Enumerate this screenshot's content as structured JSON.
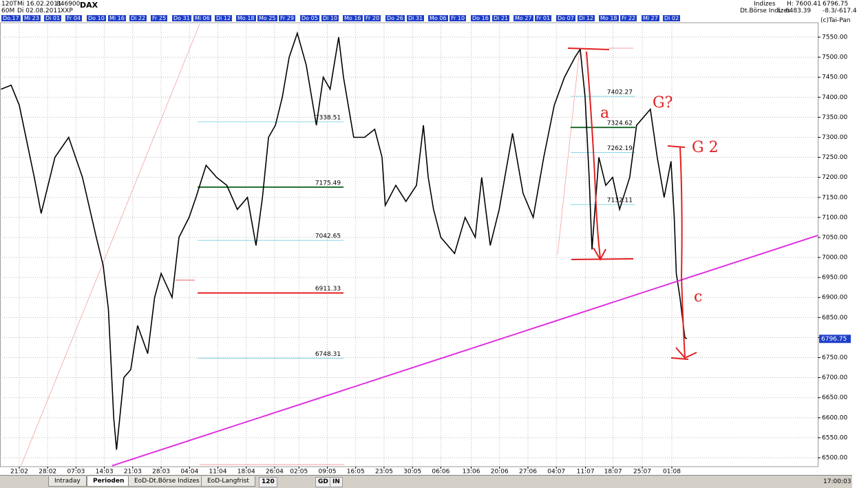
{
  "header": {
    "period": "120T",
    "date1": "Mi 16.02.2011",
    "code": "846900",
    "name": "DAX",
    "interval": "60M",
    "date2": "Di 02.08.2011",
    "exchange": "XXP",
    "group": "Indizes",
    "high": "H: 7600.41",
    "last": "6796.75",
    "market": "Dt.Börse Indizes",
    "low": "L: 6483.39",
    "change": "-8.3/-617.4",
    "copyright": "(c)Tai-Pan"
  },
  "date_strip": [
    "Do.17",
    "Mi 23",
    "Di 01",
    "Fr 04",
    "Do 10",
    "Mi 16",
    "Di 22",
    "Fr 25",
    "Do 31",
    "Mi 06",
    "Di 12",
    "Mo 18",
    "Mo 25",
    "Fr 29",
    "Do 05",
    "Di 10",
    "Mo 16",
    "Fr 20",
    "Do 26",
    "Di 31",
    "Mo 06",
    "Fr 10",
    "Do 16",
    "Di 21",
    "Mo 27",
    "Fr 01",
    "Do 07",
    "Di 12",
    "Mo 18",
    "Fr 22",
    "Mi 27",
    "Di 02"
  ],
  "toolbar": {
    "tabs": [
      "Intraday",
      "Perioden",
      "EoD-Dt.Börse Indizes",
      "EoD-Langfrist"
    ],
    "period": "120",
    "buttons": [
      "GD",
      "IN"
    ],
    "clock": "17:00:03"
  },
  "chart_data": {
    "type": "line",
    "x": [
      -4.5,
      -2,
      0,
      3.7,
      5.4,
      8.8,
      12.2,
      15.6,
      19,
      20.7,
      22,
      23.3,
      24,
      25.8,
      27.5,
      29.2,
      31.7,
      33.4,
      35,
      37.7,
      39.4,
      41.9,
      43.6,
      46.1,
      48.7,
      51.2,
      53.8,
      56.3,
      58.4,
      60,
      61.5,
      63.2,
      64.9,
      66.6,
      68.6,
      70.8,
      73.3,
      75,
      76.7,
      78.8,
      80,
      82.5,
      85.2,
      87.7,
      89.5,
      90.3,
      92.9,
      95.4,
      98,
      99.7,
      100.9,
      102.2,
      104,
      107.4,
      110,
      112.5,
      114.1,
      116.2,
      118.4,
      121.7,
      124.3,
      126.8,
      129.4,
      132,
      134.5,
      137.1,
      138.4,
      139.6,
      140.6,
      141.3,
      143,
      144.7,
      146.4,
      148.1,
      150.6,
      152.3,
      154,
      155.7,
      157.4,
      159.1,
      160.8,
      161.6,
      162.1,
      163,
      164.2,
      164.7
    ],
    "series": [
      {
        "name": "DAX",
        "color": "#000000",
        "values": [
          7420,
          7430,
          7380,
          7200,
          7110,
          7250,
          7300,
          7200,
          7050,
          6980,
          6870,
          6600,
          6520,
          6700,
          6720,
          6830,
          6760,
          6900,
          6960,
          6900,
          7050,
          7100,
          7150,
          7230,
          7200,
          7180,
          7120,
          7150,
          7030,
          7150,
          7300,
          7330,
          7400,
          7500,
          7560,
          7480,
          7330,
          7450,
          7420,
          7550,
          7450,
          7300,
          7300,
          7320,
          7250,
          7130,
          7180,
          7140,
          7180,
          7330,
          7200,
          7120,
          7050,
          7010,
          7100,
          7050,
          7200,
          7030,
          7120,
          7310,
          7160,
          7100,
          7250,
          7380,
          7450,
          7500,
          7520,
          7400,
          7200,
          7020,
          7250,
          7180,
          7200,
          7120,
          7200,
          7330,
          7350,
          7370,
          7250,
          7150,
          7240,
          7100,
          6960,
          6900,
          6800,
          6797
        ]
      }
    ],
    "xlim": [
      -4.75,
      197
    ],
    "ylim": [
      6477.7,
      7582.6
    ],
    "xticks": [
      {
        "value": 0,
        "label": "21:02"
      },
      {
        "value": 7,
        "label": "28:02"
      },
      {
        "value": 14,
        "label": "07:03"
      },
      {
        "value": 21,
        "label": "14:03"
      },
      {
        "value": 28,
        "label": "21:03"
      },
      {
        "value": 35,
        "label": "28:03"
      },
      {
        "value": 42,
        "label": "04:04"
      },
      {
        "value": 49,
        "label": "11:04"
      },
      {
        "value": 56,
        "label": "18:04"
      },
      {
        "value": 63,
        "label": "26:04"
      },
      {
        "value": 69,
        "label": "02:05"
      },
      {
        "value": 76,
        "label": "09:05"
      },
      {
        "value": 83,
        "label": "16:05"
      },
      {
        "value": 90,
        "label": "23:05"
      },
      {
        "value": 97,
        "label": "30:05"
      },
      {
        "value": 104,
        "label": "06:06"
      },
      {
        "value": 111.5,
        "label": "13:06"
      },
      {
        "value": 118.5,
        "label": "20:06"
      },
      {
        "value": 125.5,
        "label": "27:06"
      },
      {
        "value": 132.5,
        "label": "04:07"
      },
      {
        "value": 139.7,
        "label": "11:07"
      },
      {
        "value": 146.5,
        "label": "18:07"
      },
      {
        "value": 153.7,
        "label": "25:07"
      },
      {
        "value": 161,
        "label": "01:08"
      }
    ],
    "yticks": [
      {
        "value": 6500,
        "label": "6500.00"
      },
      {
        "value": 6550,
        "label": "6550.00"
      },
      {
        "value": 6600,
        "label": "6600.00"
      },
      {
        "value": 6650,
        "label": "6650.00"
      },
      {
        "value": 6700,
        "label": "6700.00"
      },
      {
        "value": 6750,
        "label": "6750.00"
      },
      {
        "value": 6800,
        "label": "6800.00"
      },
      {
        "value": 6850,
        "label": "6850.00"
      },
      {
        "value": 6900,
        "label": "6900.00"
      },
      {
        "value": 6950,
        "label": "6950.00"
      },
      {
        "value": 7000,
        "label": "7000.00"
      },
      {
        "value": 7050,
        "label": "7050.00"
      },
      {
        "value": 7100,
        "label": "7100.00"
      },
      {
        "value": 7150,
        "label": "7150.00"
      },
      {
        "value": 7200,
        "label": "7200.00"
      },
      {
        "value": 7250,
        "label": "7250.00"
      },
      {
        "value": 7300,
        "label": "7300.00"
      },
      {
        "value": 7350,
        "label": "7350.00"
      },
      {
        "value": 7400,
        "label": "7400.00"
      },
      {
        "value": 7450,
        "label": "7450.00"
      },
      {
        "value": 7500,
        "label": "7500.00"
      },
      {
        "value": 7550,
        "label": "7550.00"
      }
    ],
    "grid": true,
    "last_price": 6796.75,
    "levels": [
      {
        "value": 7338.51,
        "color": "#88d8e8",
        "from": 44,
        "to": 80
      },
      {
        "value": 7175.49,
        "color": "#1e6b2e",
        "from": 44,
        "to": 80
      },
      {
        "value": 7042.65,
        "color": "#88d8e8",
        "from": 44,
        "to": 80
      },
      {
        "value": 6911.33,
        "color": "#e02020",
        "from": 44,
        "to": 80
      },
      {
        "value": 6748.31,
        "color": "#88d8e8",
        "from": 44,
        "to": 80
      },
      {
        "value": 7402.27,
        "color": "#88d8e8",
        "from": 136,
        "to": 152
      },
      {
        "value": 7324.62,
        "color": "#1e6b2e",
        "from": 136,
        "to": 152
      },
      {
        "value": 7262.19,
        "color": "#88d8e8",
        "from": 136,
        "to": 152
      },
      {
        "value": 7132.11,
        "color": "#88d8e8",
        "from": 136,
        "to": 152
      }
    ],
    "trendlines": [
      {
        "color": "#e030e0",
        "x": [
          22.9,
          197
        ],
        "values": [
          6480,
          7055
        ]
      }
    ],
    "annotations": [
      "a",
      "G?",
      "G 2",
      "c"
    ]
  }
}
